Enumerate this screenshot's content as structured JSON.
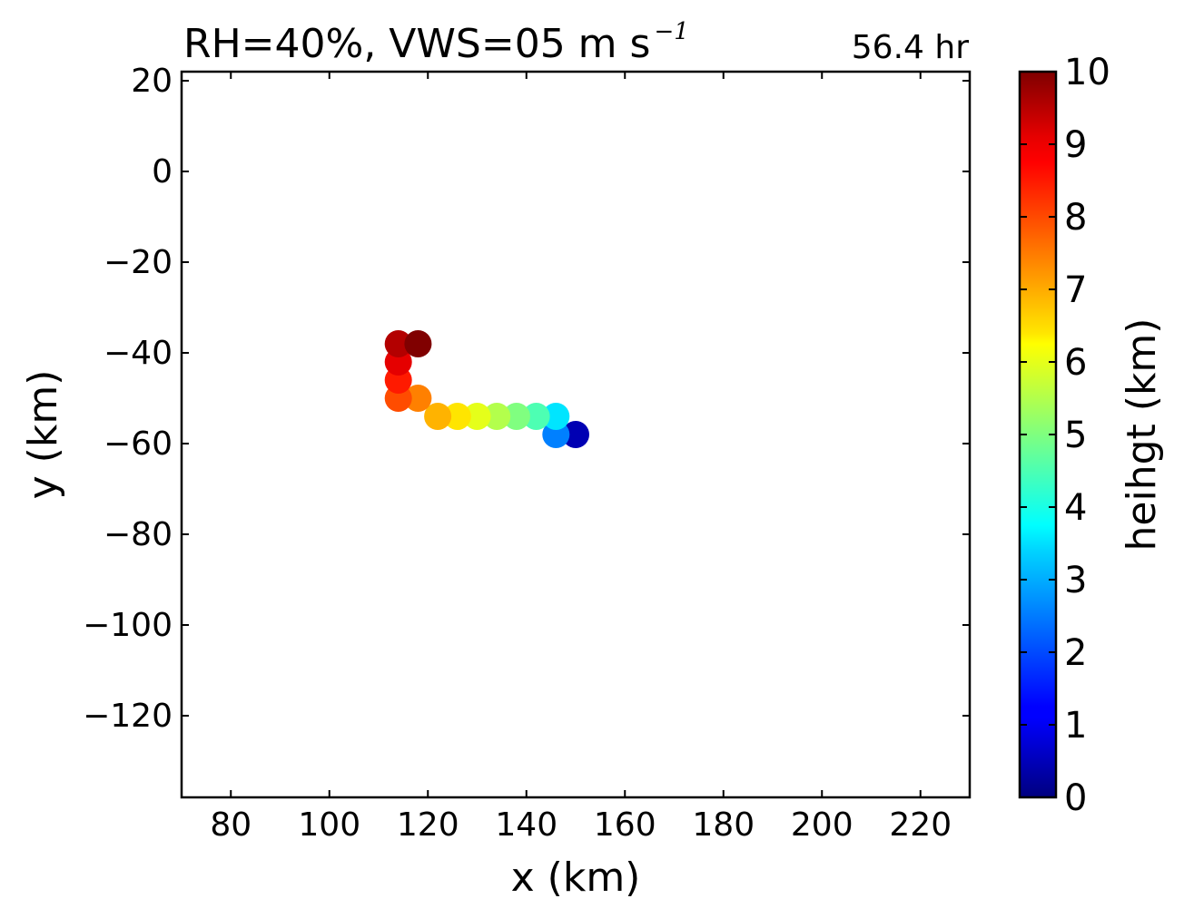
{
  "chart_data": {
    "type": "scatter",
    "title": {
      "main": "RH=40%, VWS=05 m s",
      "superscript": "−1"
    },
    "time_label": "56.4 hr",
    "time_label_color": "#0000ff",
    "xlabel": "x (km)",
    "ylabel": "y (km)",
    "xlim": [
      70,
      230
    ],
    "ylim": [
      -138,
      22
    ],
    "xticks": [
      80,
      100,
      120,
      140,
      160,
      180,
      200,
      220
    ],
    "yticks": [
      20,
      0,
      -20,
      -40,
      -60,
      -80,
      -100,
      -120
    ],
    "xtick_labels": [
      "80",
      "100",
      "120",
      "140",
      "160",
      "180",
      "200",
      "220"
    ],
    "ytick_labels": [
      "20",
      "0",
      "−20",
      "−40",
      "−60",
      "−80",
      "−100",
      "−120"
    ],
    "colorbar": {
      "label": "heihgt (km)",
      "colormap": "jet",
      "range": [
        0,
        10
      ],
      "ticks": [
        0,
        1,
        2,
        3,
        4,
        5,
        6,
        7,
        8,
        9,
        10
      ],
      "tick_labels": [
        "0",
        "1",
        "2",
        "3",
        "4",
        "5",
        "6",
        "7",
        "8",
        "9",
        "10"
      ]
    },
    "points": [
      {
        "x": 150,
        "y": -58,
        "height": 0.5
      },
      {
        "x": 146,
        "y": -58,
        "height": 2.5
      },
      {
        "x": 146,
        "y": -54,
        "height": 3.5
      },
      {
        "x": 142,
        "y": -54,
        "height": 4.5
      },
      {
        "x": 138,
        "y": -54,
        "height": 5.0
      },
      {
        "x": 134,
        "y": -54,
        "height": 5.5
      },
      {
        "x": 130,
        "y": -54,
        "height": 6.0
      },
      {
        "x": 126,
        "y": -54,
        "height": 6.5
      },
      {
        "x": 122,
        "y": -54,
        "height": 7.0
      },
      {
        "x": 118,
        "y": -50,
        "height": 7.5
      },
      {
        "x": 114,
        "y": -50,
        "height": 8.0
      },
      {
        "x": 114,
        "y": -46,
        "height": 8.5
      },
      {
        "x": 114,
        "y": -42,
        "height": 9.0
      },
      {
        "x": 114,
        "y": -38,
        "height": 9.5
      },
      {
        "x": 118,
        "y": -38,
        "height": 10.0
      }
    ]
  }
}
